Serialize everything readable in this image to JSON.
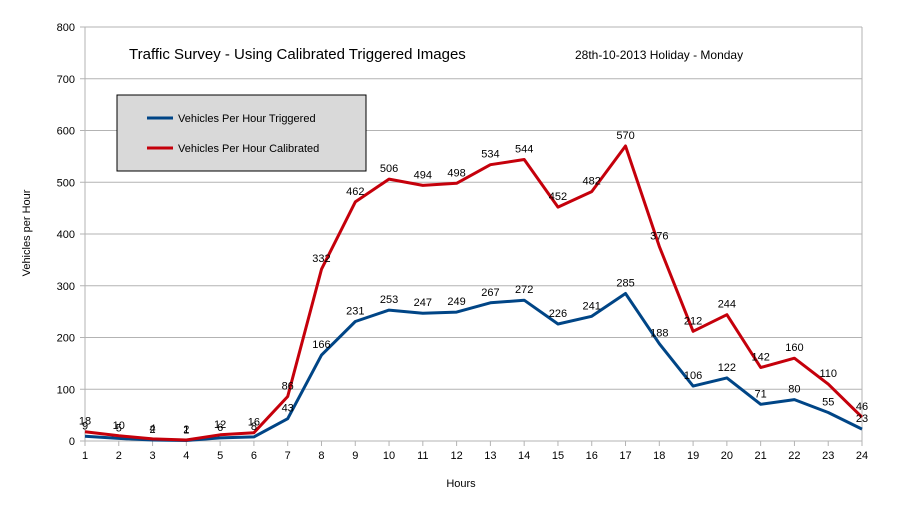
{
  "chart_data": {
    "type": "line",
    "title": "Traffic Survey - Using Calibrated Triggered Images",
    "subtitle": "28th-10-2013 Holiday - Monday",
    "xlabel": "Hours",
    "ylabel": "Vehicles per Hour",
    "x": [
      1,
      2,
      3,
      4,
      5,
      6,
      7,
      8,
      9,
      10,
      11,
      12,
      13,
      14,
      15,
      16,
      17,
      18,
      19,
      20,
      21,
      22,
      23,
      24
    ],
    "ylim": [
      0,
      800
    ],
    "yticks": [
      0,
      100,
      200,
      300,
      400,
      500,
      600,
      700,
      800
    ],
    "grid": true,
    "legend_position": "top-left",
    "series": [
      {
        "name": "Vehicles Per Hour Triggered",
        "color": "#004586",
        "values": [
          9,
          5,
          2,
          1,
          6,
          8,
          43,
          166,
          231,
          253,
          247,
          249,
          267,
          272,
          226,
          241,
          285,
          188,
          106,
          122,
          71,
          80,
          55,
          23
        ]
      },
      {
        "name": "Vehicles Per Hour Calibrated",
        "color": "#c5000b",
        "values": [
          18,
          10,
          4,
          2,
          12,
          16,
          86,
          332,
          462,
          506,
          494,
          498,
          534,
          544,
          452,
          482,
          570,
          376,
          212,
          244,
          142,
          160,
          110,
          46
        ]
      }
    ]
  }
}
